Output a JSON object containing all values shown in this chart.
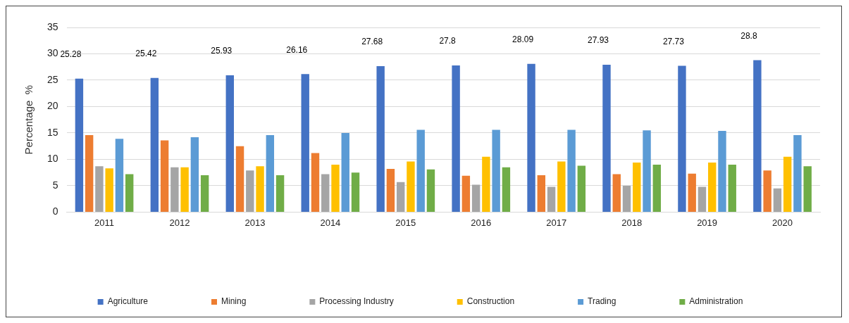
{
  "chart_data": {
    "type": "bar",
    "ylabel": "Percentage  %",
    "categories": [
      "2011",
      "2012",
      "2013",
      "2014",
      "2015",
      "2016",
      "2017",
      "2018",
      "2019",
      "2020"
    ],
    "series": [
      {
        "name": "Agriculture",
        "color": "#4472c4",
        "values": [
          25.28,
          25.42,
          25.93,
          26.16,
          27.68,
          27.8,
          28.09,
          27.93,
          27.73,
          28.8
        ],
        "value_labels": [
          "25.28",
          "25.42",
          "25.93",
          "26.16",
          "27.68",
          "27.8",
          "28.09",
          "27.93",
          "27.73",
          "28.8"
        ]
      },
      {
        "name": "Mining",
        "color": "#ed7d31",
        "values": [
          14.6,
          13.6,
          12.5,
          11.2,
          8.2,
          6.9,
          7.0,
          7.2,
          7.3,
          7.9
        ]
      },
      {
        "name": "Processing Industry",
        "color": "#a5a5a5",
        "values": [
          8.7,
          8.5,
          7.9,
          7.2,
          5.7,
          5.2,
          4.8,
          5.0,
          4.8,
          4.5
        ]
      },
      {
        "name": "Construction",
        "color": "#ffc000",
        "values": [
          8.3,
          8.5,
          8.7,
          9.0,
          9.6,
          10.5,
          9.6,
          9.4,
          9.4,
          10.5
        ]
      },
      {
        "name": "Trading",
        "color": "#5b9bd5",
        "values": [
          13.9,
          14.2,
          14.6,
          15.0,
          15.6,
          15.6,
          15.6,
          15.5,
          15.4,
          14.6
        ]
      },
      {
        "name": "Administration",
        "color": "#70ad47",
        "values": [
          7.2,
          7.0,
          7.0,
          7.5,
          8.1,
          8.5,
          8.8,
          9.0,
          9.0,
          8.7
        ]
      }
    ],
    "ylim": [
      0,
      35
    ],
    "yticks": [
      0,
      5,
      10,
      15,
      20,
      25,
      30,
      35
    ],
    "grid": "y",
    "legend": "bottom"
  }
}
